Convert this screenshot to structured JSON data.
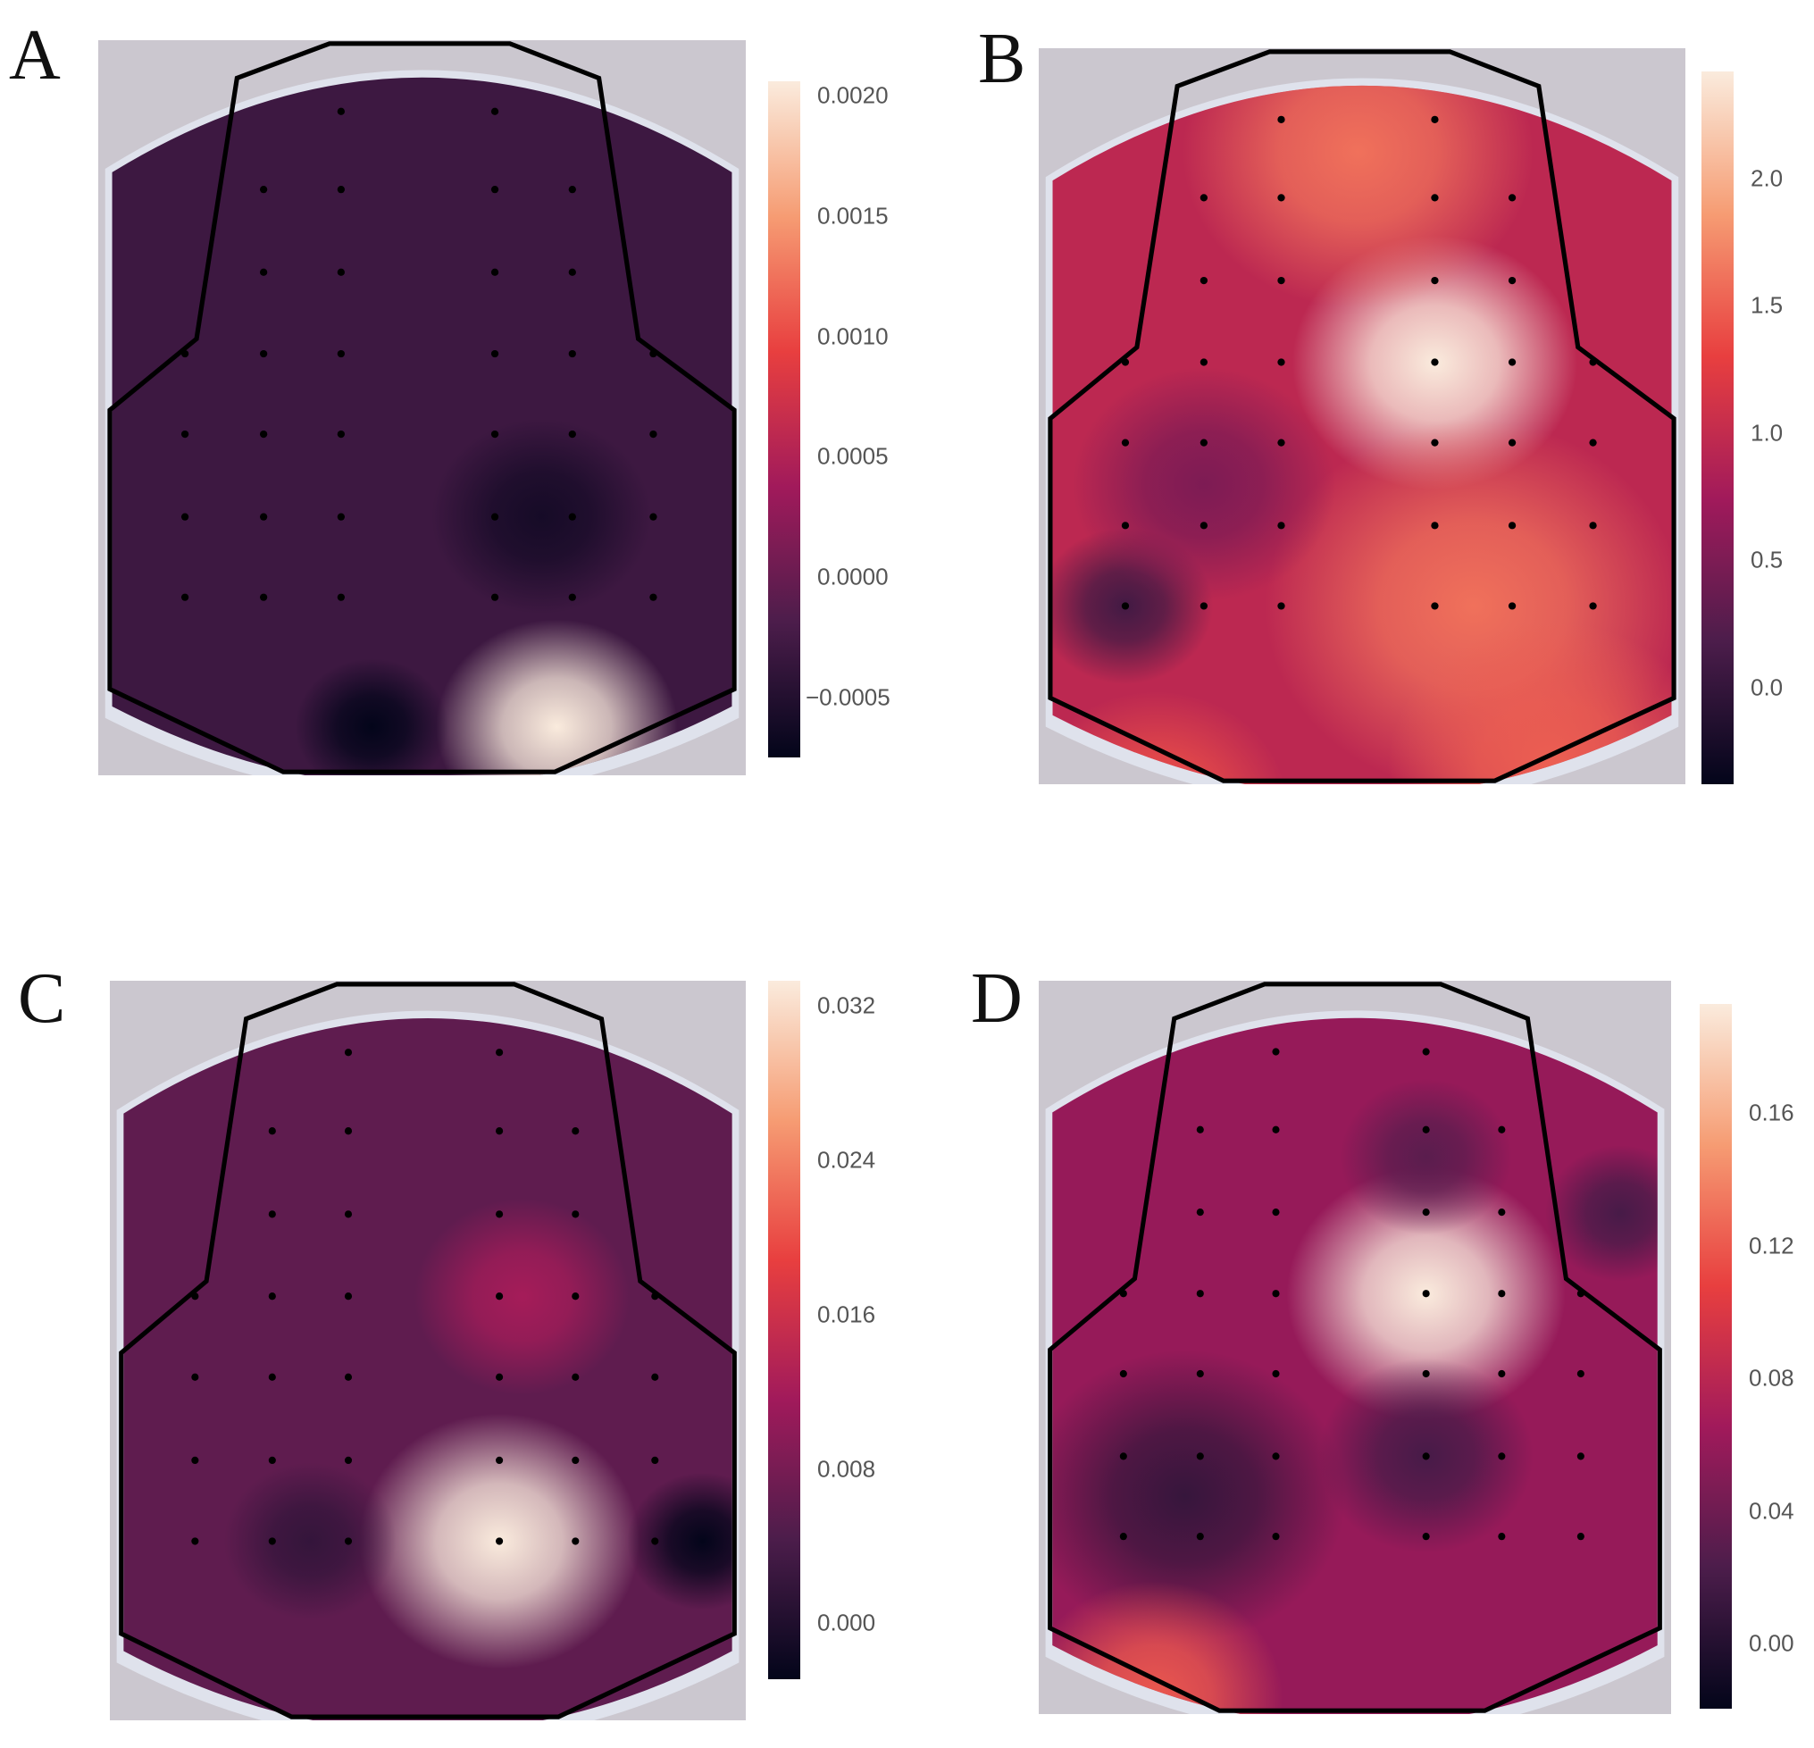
{
  "chart_data": [
    {
      "type": "heatmap",
      "panel_label": "A",
      "colormap": "rocket",
      "colorbar": {
        "vmin": -0.00075,
        "vmax": 0.00206,
        "ticks": [
          0.002,
          0.0015,
          0.001,
          0.0005,
          0.0,
          -0.0005
        ],
        "tick_labels": [
          "0.0020",
          "0.0015",
          "0.0010",
          "0.0005",
          "0.0000",
          "−0.0005"
        ]
      },
      "base_value": -0.0003,
      "hotspots": [
        {
          "row": 7.6,
          "col": 3.8,
          "value": 0.00206,
          "spread": 1.1
        },
        {
          "row": 7.6,
          "col": 2.2,
          "value": -0.00075,
          "spread": 0.7
        },
        {
          "row": 5.0,
          "col": 3.6,
          "value": -0.0006,
          "spread": 1.0
        }
      ]
    },
    {
      "type": "heatmap",
      "panel_label": "B",
      "colormap": "rocket",
      "colorbar": {
        "vmin": -0.38,
        "vmax": 2.42,
        "ticks": [
          2.0,
          1.5,
          1.0,
          0.5,
          0.0
        ],
        "tick_labels": [
          "2.0",
          "1.5",
          "1.0",
          "0.5",
          "0.0"
        ]
      },
      "base_value": 0.95,
      "hotspots": [
        {
          "row": 3,
          "col": 3,
          "value": 2.42,
          "spread": 1.3
        },
        {
          "row": 0.4,
          "col": 2.5,
          "value": 1.6,
          "spread": 1.6
        },
        {
          "row": 6,
          "col": 3.5,
          "value": 1.6,
          "spread": 1.9
        },
        {
          "row": 6,
          "col": 0,
          "value": 0.1,
          "spread": 0.8
        },
        {
          "row": 4.5,
          "col": 1,
          "value": 0.5,
          "spread": 1.2
        },
        {
          "row": 8,
          "col": 4.5,
          "value": 1.5,
          "spread": 1.5
        },
        {
          "row": 8.5,
          "col": 0.4,
          "value": 1.4,
          "spread": 1.2
        }
      ]
    },
    {
      "type": "heatmap",
      "panel_label": "C",
      "colormap": "rocket",
      "colorbar": {
        "vmin": -0.0029,
        "vmax": 0.0333,
        "ticks": [
          0.032,
          0.024,
          0.016,
          0.008,
          0.0
        ],
        "tick_labels": [
          "0.032",
          "0.024",
          "0.016",
          "0.008",
          "0.000"
        ]
      },
      "base_value": 0.006,
      "hotspots": [
        {
          "row": 6,
          "col": 3,
          "value": 0.0333,
          "spread": 1.3
        },
        {
          "row": 6,
          "col": 5.6,
          "value": -0.0029,
          "spread": 0.7
        },
        {
          "row": 6,
          "col": 1.5,
          "value": 0.002,
          "spread": 0.8
        },
        {
          "row": 3,
          "col": 3.3,
          "value": 0.012,
          "spread": 1.0
        }
      ]
    },
    {
      "type": "heatmap",
      "panel_label": "D",
      "colormap": "rocket",
      "colorbar": {
        "vmin": -0.0196,
        "vmax": 0.193,
        "ticks": [
          0.16,
          0.12,
          0.08,
          0.04,
          0.0
        ],
        "tick_labels": [
          "0.16",
          "0.12",
          "0.08",
          "0.04",
          "0.00"
        ]
      },
      "base_value": 0.06,
      "hotspots": [
        {
          "row": 3,
          "col": 3,
          "value": 0.193,
          "spread": 1.3
        },
        {
          "row": 5.5,
          "col": 0.8,
          "value": 0.01,
          "spread": 1.5
        },
        {
          "row": 5,
          "col": 3,
          "value": 0.02,
          "spread": 1.0
        },
        {
          "row": 8,
          "col": 0.4,
          "value": 0.12,
          "spread": 1.2
        },
        {
          "row": 1.3,
          "col": 3,
          "value": 0.03,
          "spread": 0.8
        },
        {
          "row": 2,
          "col": 5.5,
          "value": 0.02,
          "spread": 0.7
        }
      ]
    }
  ]
}
